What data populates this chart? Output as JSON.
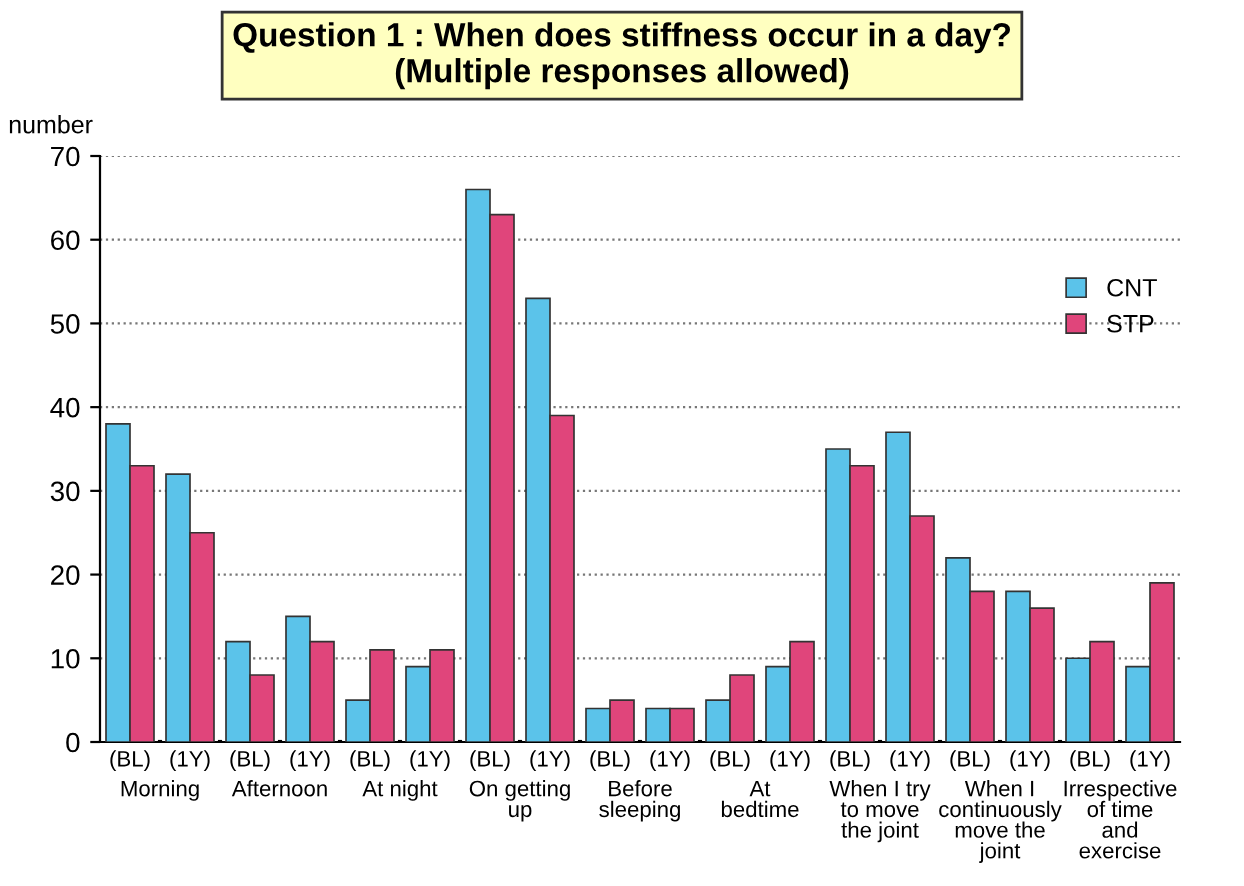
{
  "chart_data": {
    "type": "bar",
    "title": "Question 1 : When does stiffness occur in a day?\n(Multiple responses allowed)",
    "ylabel": "number",
    "categories": [
      "(BL)",
      "(1Y)",
      "(BL)",
      "(1Y)",
      "(BL)",
      "(1Y)",
      "(BL)",
      "(1Y)",
      "(BL)",
      "(1Y)",
      "(BL)",
      "(1Y)",
      "(BL)",
      "(1Y)",
      "(BL)",
      "(1Y)",
      "(BL)",
      "(1Y)"
    ],
    "series": [
      {
        "name": "CNT",
        "color": "#5bc3ea",
        "values": [
          38,
          32,
          12,
          15,
          5,
          9,
          66,
          53,
          4,
          4,
          5,
          9,
          35,
          37,
          22,
          18,
          10,
          9
        ]
      },
      {
        "name": "STP",
        "color": "#e0457b",
        "values": [
          33,
          25,
          8,
          12,
          11,
          11,
          63,
          39,
          5,
          4,
          8,
          12,
          33,
          27,
          18,
          16,
          12,
          19
        ]
      }
    ],
    "annotations": [
      "Morning",
      "Afternoon",
      "At night",
      "On getting\nup",
      "Before\nsleeping",
      "At\nbedtime",
      "When I try\nto move\nthe joint",
      "When I\ncontinuously\nmove the\njoint",
      "Irrespective\nof time\nand\nexercise"
    ],
    "ylim": [
      0,
      70
    ],
    "yticks": [
      0,
      10,
      20,
      30,
      40,
      50,
      60,
      70
    ],
    "grid": "y",
    "legend": "top right"
  }
}
